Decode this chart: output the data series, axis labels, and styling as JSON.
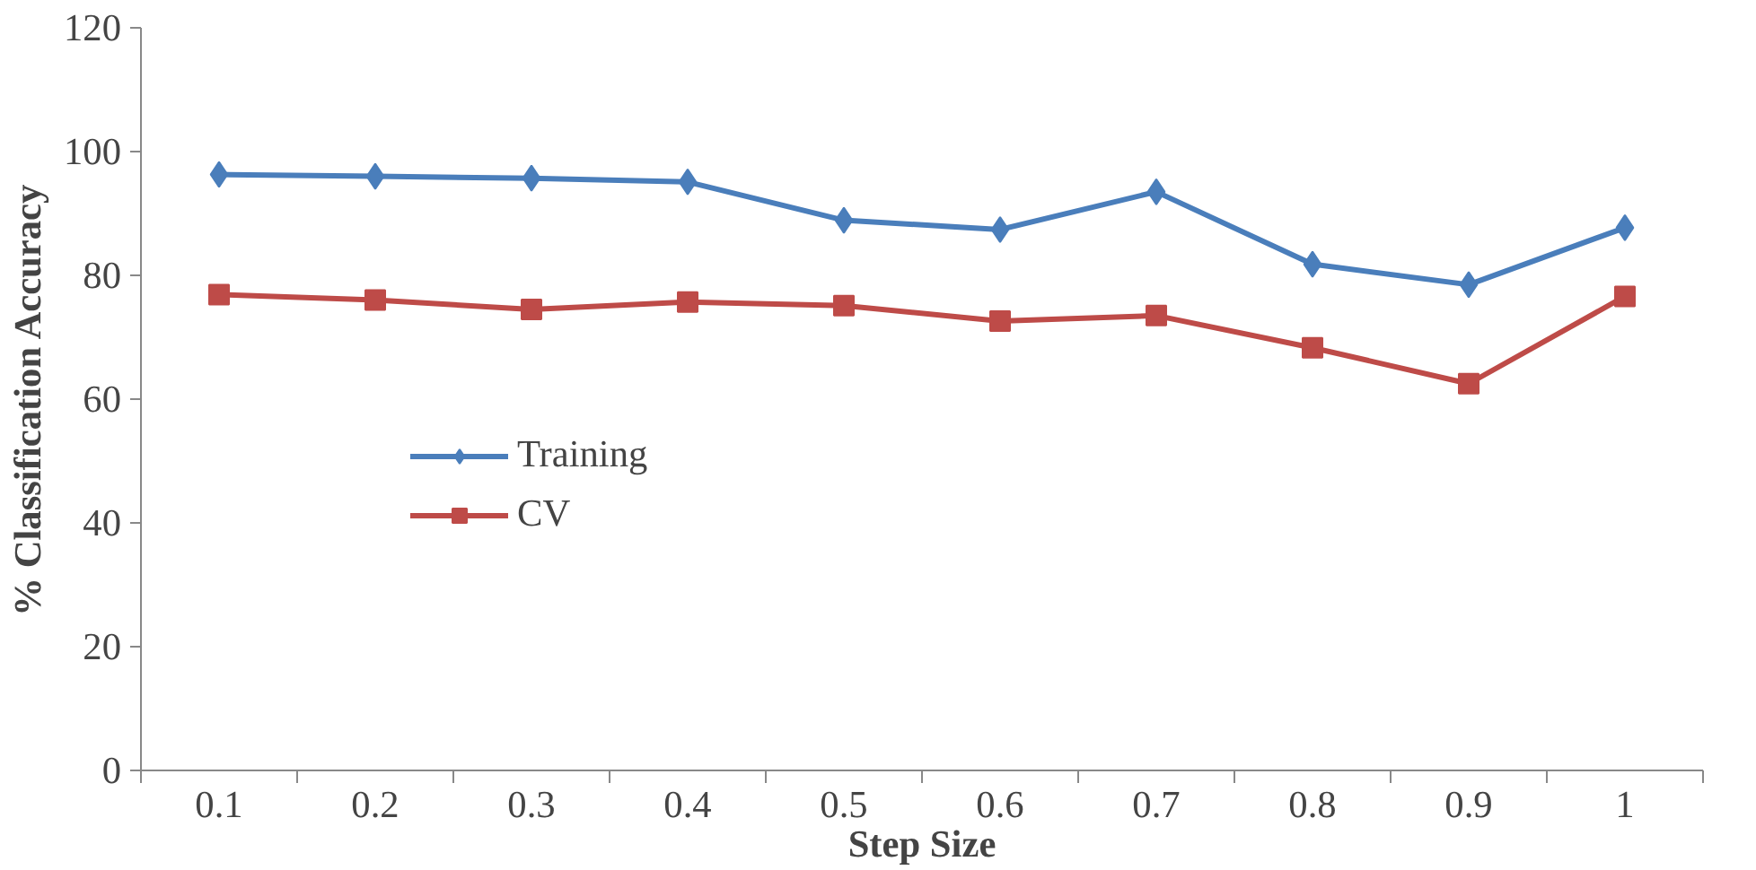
{
  "chart_data": {
    "type": "line",
    "xlabel": "Step Size",
    "ylabel": "% Classification Accuracy",
    "categories": [
      "0.1",
      "0.2",
      "0.3",
      "0.4",
      "0.5",
      "0.6",
      "0.7",
      "0.8",
      "0.9",
      "1"
    ],
    "series": [
      {
        "name": "Training",
        "color": "#4a7ebb",
        "marker": "diamond",
        "values": [
          96.3,
          96.0,
          95.7,
          95.1,
          88.9,
          87.4,
          93.5,
          81.8,
          78.5,
          87.7
        ]
      },
      {
        "name": "CV",
        "color": "#be4b48",
        "marker": "square",
        "values": [
          76.9,
          76.0,
          74.5,
          75.7,
          75.1,
          72.6,
          73.5,
          68.3,
          62.5,
          76.6
        ]
      }
    ],
    "ylim": [
      0,
      120
    ],
    "yticks": [
      0,
      20,
      40,
      60,
      80,
      100,
      120
    ],
    "grid": false,
    "legend": "left",
    "line_style": "solid"
  }
}
